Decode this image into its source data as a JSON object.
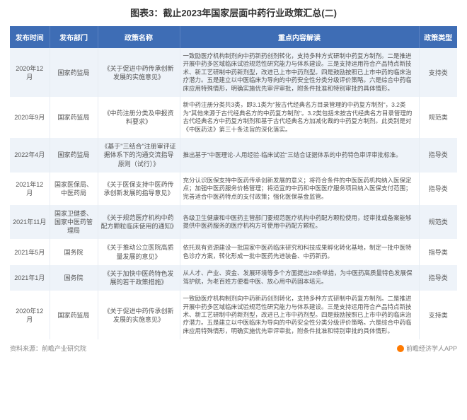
{
  "title": "图表3：截止2023年国家层面中药行业政策汇总(二)",
  "header_bg": "#3e6db5",
  "header_fg": "#ffffff",
  "row_alt_bg": "#eef3f9",
  "columns": [
    "发布时间",
    "发布部门",
    "政策名称",
    "重点内容解读",
    "政策类型"
  ],
  "rows": [
    {
      "date": "2020年12月",
      "dept": "国家药监局",
      "policy": "《关于促进中药传承创新发展的实施意见》",
      "desc": "一致励医疗机构制剂向中药新药创剂转化，支持多种方式研制中药复方制剂。二是推进开展中药多区域临床试验规范性研究能力与体系建设。三是支持运用符合产品特点新技术、新工艺研制中药新剂型，改进已上市中药剂型。四是鼓励按照已上市中药的临床治疗潜力。五是建立以中医临床为导向的中药安全性分类分级评价策略。六是综合中药临床应用特殊情形，明确实施优先审评审批，附条件批准和特别审批的具体情形。",
      "type": "支持类"
    },
    {
      "date": "2020年9月",
      "dept": "国家药监局",
      "policy": "《中药注册分类及申报资料要求》",
      "desc": "新中药注册分类共3类，即3.1类为\"按古代经典名方目录管理的中药复方制剂\"，3.2类为\"其他来源于古代经典名方的中药复方制剂\"。3.2类包括未按古代经典名方目录管理的古代经典名方中药复方制剂和基于古代经典名方加减化裁的中药复方制剂。此类别是对《中医药法》第三十条法旨的深化落实。",
      "type": "规范类"
    },
    {
      "date": "2022年4月",
      "dept": "国家药监局",
      "policy": "《基于\"三结合\"注册审评证据体系下的沟通交流指导原则（试行）》",
      "desc": "推出基于\"中医理论-人用经验-临床试验\"三结合证据体系的中药特色审评审批标准。",
      "type": "指导类"
    },
    {
      "date": "2021年12月",
      "dept": "国家医保局、中医药局",
      "policy": "《关于医保支持中医药传承创新发展的指导意见》",
      "desc": "充分认识医保支持中医药传承创新发展的意义；将符合条件的中医医药机构纳入医保定点；加强中医药服务价格管理；将适宜的中药和中医医疗服务项目纳入医保支付范围；完善适合中医药特点的支付政策；强化医保基金监管。",
      "type": "指导类"
    },
    {
      "date": "2021年11月",
      "dept": "国家卫健委、国家中医药管理局",
      "policy": "《关于规范医疗机构中药配方颗粒临床使用的通知》",
      "desc": "各级卫生健康和中医药主管部门要规范医疗机构中药配方颗粒使用，经审批或备案能够提供中医药服务的医疗机构方可使用中药配方颗粒。",
      "type": "规范类"
    },
    {
      "date": "2021年5月",
      "dept": "国务院",
      "policy": "《关于推动公立医院高质量发展的意见》",
      "desc": "依托现有资源建设一批国家中医药临床研究和科技成果孵化转化基地，制定一批中医特色诊疗方案，转化形成一批中医药先进装备、中药新药。",
      "type": "指导类"
    },
    {
      "date": "2021年1月",
      "dept": "国务院",
      "policy": "《关于加快中医药特色发展的若干政策措施》",
      "desc": "从人才、产业、资金、发展环境等多个方面提出28条举措，为中医药高质量特色发展保驾护航，为老百姓方便看中医、放心用中药固本培元。",
      "type": "指导类"
    },
    {
      "date": "2020年12月",
      "dept": "国家药监局",
      "policy": "《关于促进中药传承创新发展的实施意见》",
      "desc": "一致励医疗机构制剂向中药新药创剂转化，支持多种方式研制中药复方制剂。二是推进开展中药多区域临床试验规范性研究能力与体系建设。三是支持运用符合产品特点新技术、新工艺研制中药新剂型，改进已上市中药剂型。四是鼓励按照已上市中药的临床治疗潜力。五是建立以中医临床为导向的中药安全性分类分级评价策略。六是综合中药临床应用特殊情形，明确实施优先审评审批，附条件批准和特别审批的具体情形。",
      "type": "支持类"
    }
  ],
  "footer_left": "资料来源：前瞻产业研究院",
  "footer_right": "前瞻经济学人APP"
}
